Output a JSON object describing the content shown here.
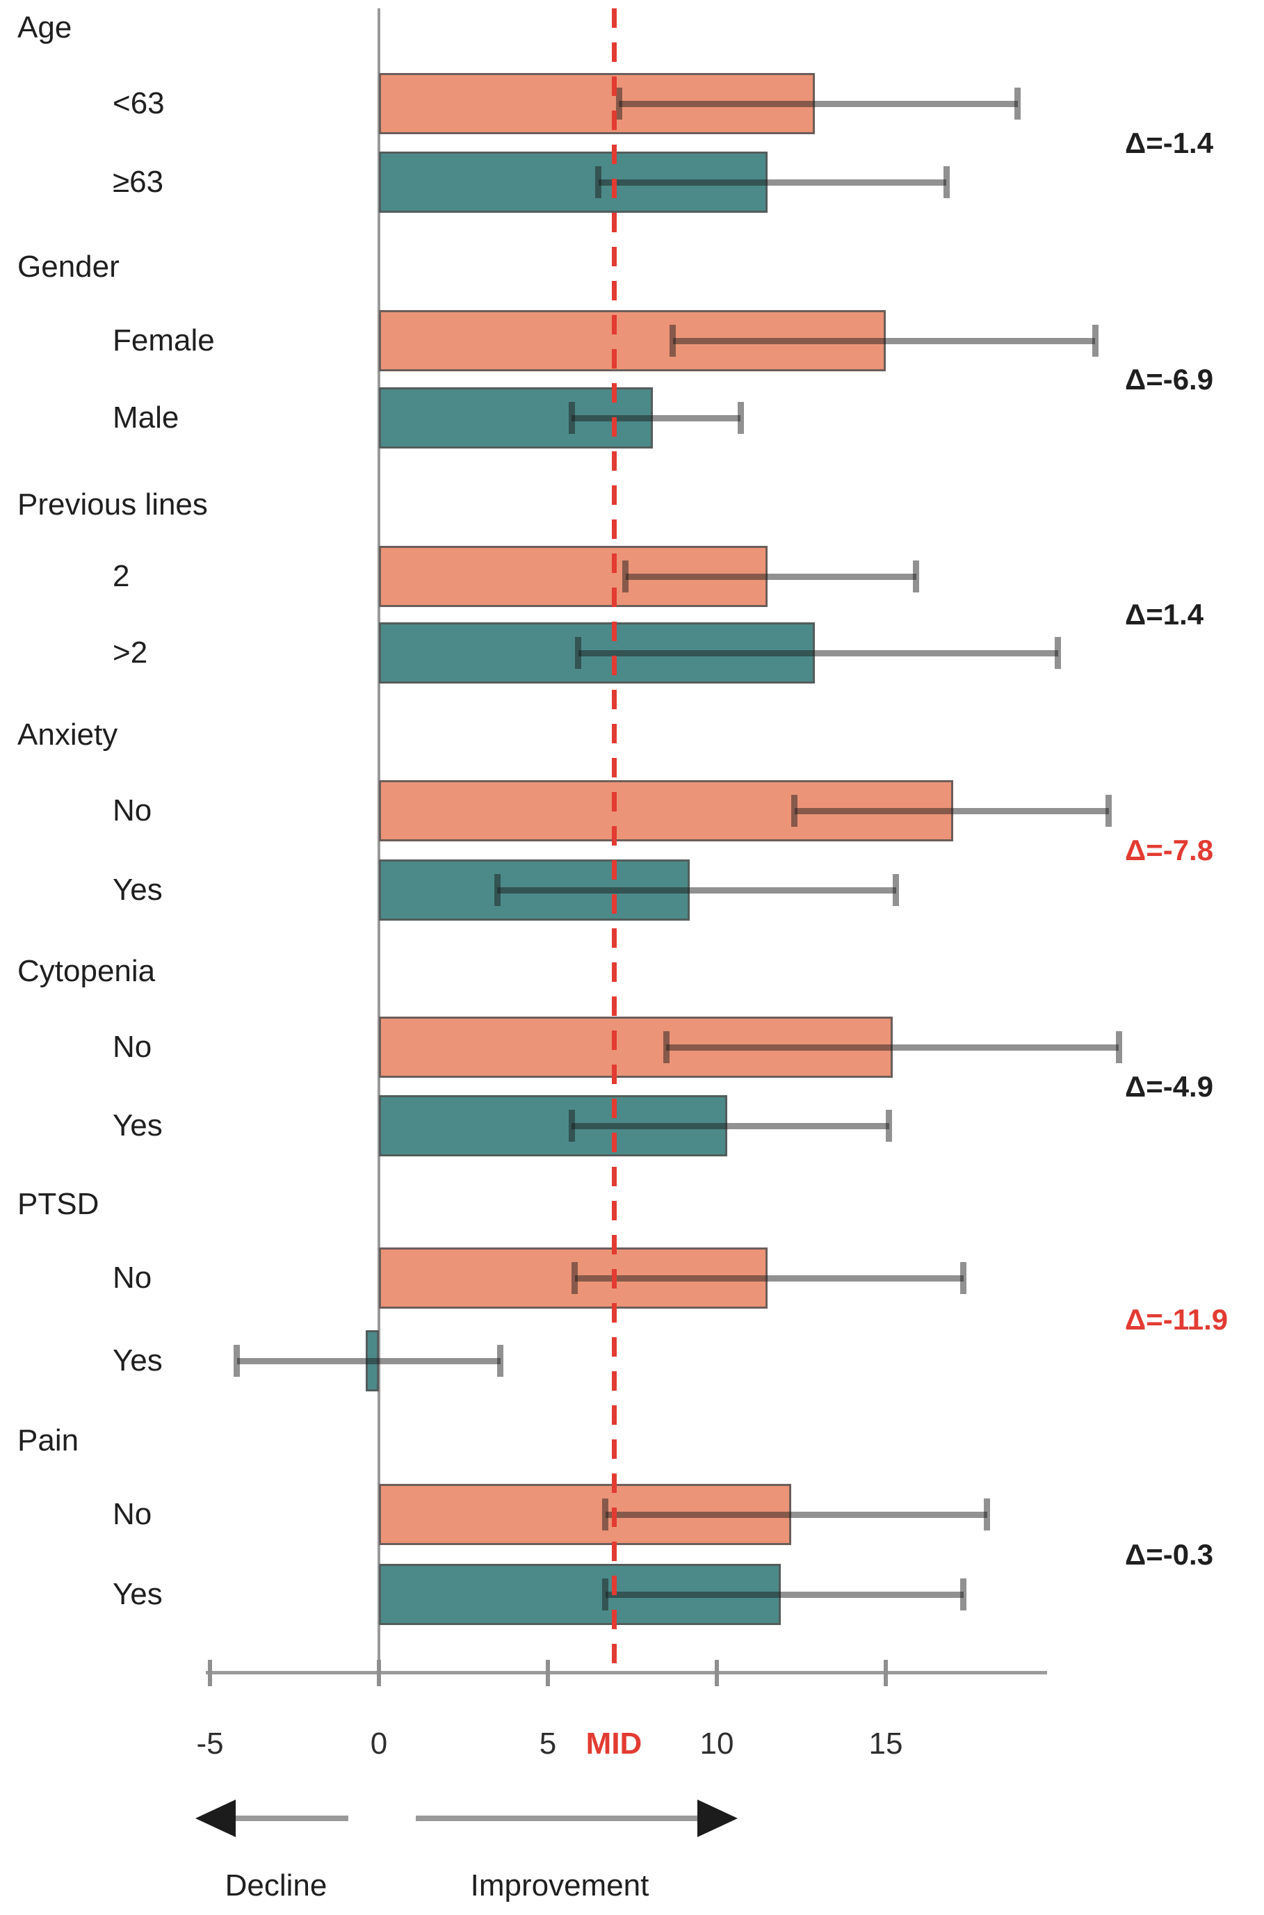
{
  "palette": {
    "bar_primary": "#EC9477",
    "bar_secondary": "#4C8A89",
    "highlight_red": "#E23B32",
    "delta_default": "#1F1F1F",
    "axis_gray": "#9A9A9A"
  },
  "chart_data": {
    "type": "bar",
    "orientation": "horizontal",
    "title": "",
    "xlabel": "",
    "ylabel": "",
    "x_axis": {
      "ticks": [
        -5,
        0,
        5,
        10,
        15
      ],
      "range": [
        -5.2,
        19.8
      ],
      "grid": false,
      "mid_reference_line": {
        "value": 7,
        "label": "MID"
      }
    },
    "direction_annotations": {
      "negative": "Decline",
      "positive": "Improvement"
    },
    "groups": [
      {
        "label": "Age",
        "rows": [
          {
            "label": "<63",
            "value": 12.9,
            "ci_low": 7.1,
            "ci_high": 18.9
          },
          {
            "label": "≥63",
            "value": 11.5,
            "ci_low": 6.5,
            "ci_high": 16.8
          }
        ],
        "delta": "Δ=-1.4",
        "delta_highlighted": false
      },
      {
        "label": "Gender",
        "rows": [
          {
            "label": "Female",
            "value": 15.0,
            "ci_low": 8.7,
            "ci_high": 21.2
          },
          {
            "label": "Male",
            "value": 8.1,
            "ci_low": 5.7,
            "ci_high": 10.7
          }
        ],
        "delta": "Δ=-6.9",
        "delta_highlighted": false
      },
      {
        "label": "Previous lines",
        "rows": [
          {
            "label": "2",
            "value": 11.5,
            "ci_low": 7.3,
            "ci_high": 15.9
          },
          {
            "label": ">2",
            "value": 12.9,
            "ci_low": 5.9,
            "ci_high": 20.1
          }
        ],
        "delta": "Δ=1.4",
        "delta_highlighted": false
      },
      {
        "label": "Anxiety",
        "rows": [
          {
            "label": "No",
            "value": 17.0,
            "ci_low": 12.3,
            "ci_high": 21.6
          },
          {
            "label": "Yes",
            "value": 9.2,
            "ci_low": 3.5,
            "ci_high": 15.3
          }
        ],
        "delta": "Δ=-7.8",
        "delta_highlighted": true
      },
      {
        "label": "Cytopenia",
        "rows": [
          {
            "label": "No",
            "value": 15.2,
            "ci_low": 8.5,
            "ci_high": 21.9
          },
          {
            "label": "Yes",
            "value": 10.3,
            "ci_low": 5.7,
            "ci_high": 15.1
          }
        ],
        "delta": "Δ=-4.9",
        "delta_highlighted": false
      },
      {
        "label": "PTSD",
        "rows": [
          {
            "label": "No",
            "value": 11.5,
            "ci_low": 5.8,
            "ci_high": 17.3
          },
          {
            "label": "Yes",
            "value": -0.4,
            "ci_low": -4.2,
            "ci_high": 3.6
          }
        ],
        "delta": "Δ=-11.9",
        "delta_highlighted": true
      },
      {
        "label": "Pain",
        "rows": [
          {
            "label": "No",
            "value": 12.2,
            "ci_low": 6.7,
            "ci_high": 18.0
          },
          {
            "label": "Yes",
            "value": 11.9,
            "ci_low": 6.7,
            "ci_high": 17.3
          }
        ],
        "delta": "Δ=-0.3",
        "delta_highlighted": false
      }
    ]
  }
}
